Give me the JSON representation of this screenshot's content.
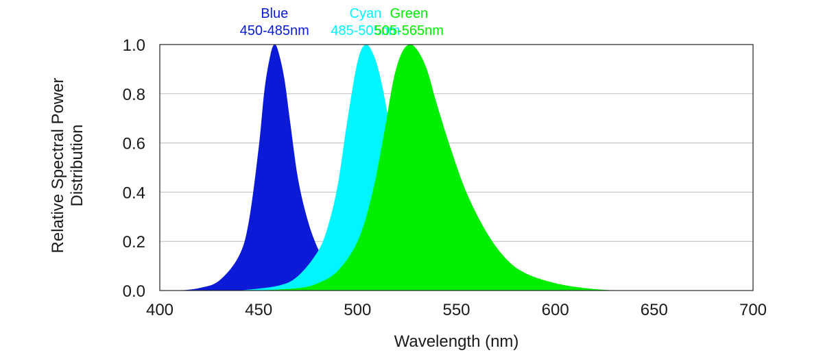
{
  "chart_data": {
    "type": "area",
    "xlabel": "Wavelength (nm)",
    "ylabel": "Relative Spectral Power Distribution",
    "xlim": [
      400,
      700
    ],
    "ylim": [
      0,
      1.0
    ],
    "x_ticks": [
      "400",
      "450",
      "500",
      "550",
      "600",
      "650",
      "700"
    ],
    "y_ticks": [
      "0.0",
      "0.2",
      "0.4",
      "0.6",
      "0.8",
      "1.0"
    ],
    "grid": true,
    "series": [
      {
        "name": "Blue",
        "range_label": "450-485nm",
        "color": "#0a1ad6",
        "x": [
          410,
          420,
          430,
          440,
          445,
          450,
          453,
          456,
          458,
          460,
          463,
          466,
          470,
          475,
          480,
          485,
          490,
          500,
          510
        ],
        "values": [
          0.0,
          0.01,
          0.04,
          0.14,
          0.28,
          0.58,
          0.82,
          0.96,
          1.0,
          0.97,
          0.86,
          0.68,
          0.45,
          0.28,
          0.17,
          0.1,
          0.06,
          0.02,
          0.0
        ]
      },
      {
        "name": "Cyan",
        "range_label": "485-505nm",
        "color": "#00f6ff",
        "x": [
          440,
          460,
          470,
          480,
          485,
          490,
          495,
          500,
          504,
          508,
          512,
          518,
          525,
          535,
          545,
          560,
          580
        ],
        "values": [
          0.0,
          0.02,
          0.06,
          0.16,
          0.26,
          0.43,
          0.7,
          0.93,
          1.0,
          0.96,
          0.85,
          0.6,
          0.35,
          0.17,
          0.08,
          0.03,
          0.0
        ]
      },
      {
        "name": "Green",
        "range_label": "505-565nm",
        "color": "#00ee00",
        "x": [
          450,
          470,
          480,
          490,
          500,
          507,
          513,
          518,
          522,
          526,
          530,
          535,
          540,
          547,
          555,
          565,
          575,
          585,
          600,
          615,
          630
        ],
        "values": [
          0.0,
          0.01,
          0.03,
          0.08,
          0.2,
          0.38,
          0.62,
          0.85,
          0.96,
          1.0,
          0.98,
          0.9,
          0.76,
          0.58,
          0.4,
          0.24,
          0.13,
          0.07,
          0.03,
          0.01,
          0.0
        ]
      }
    ]
  }
}
